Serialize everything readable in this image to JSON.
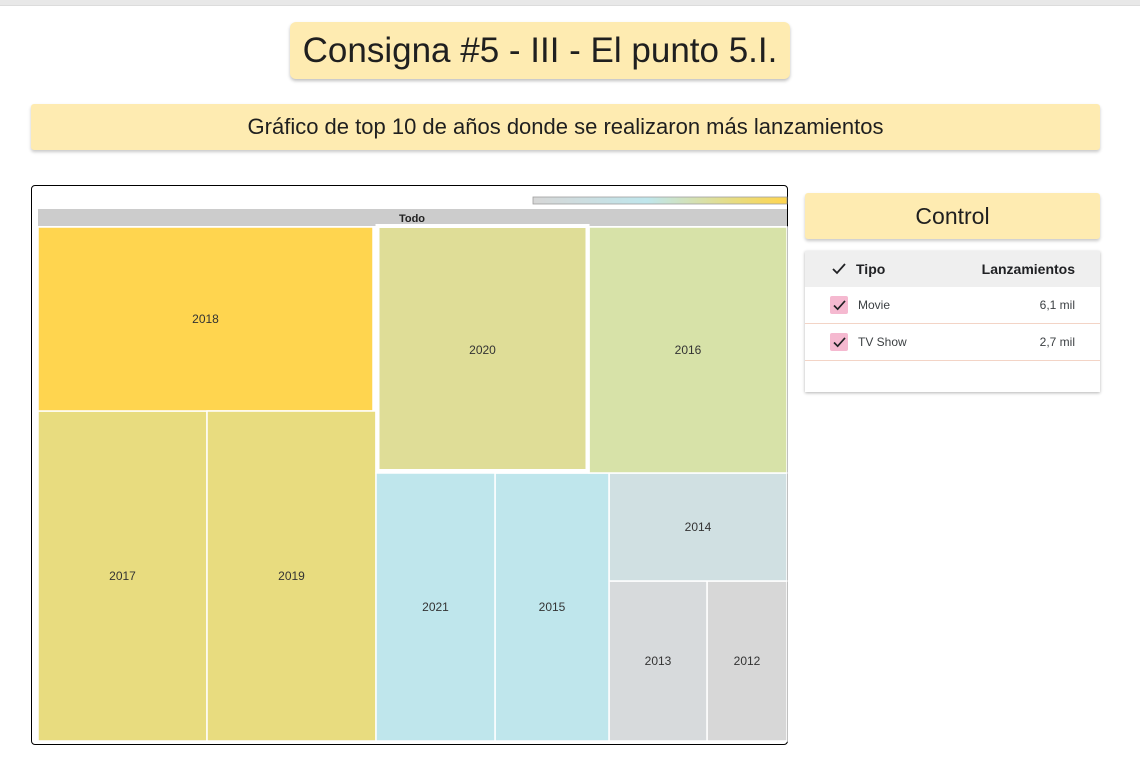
{
  "title": "Consigna #5 - III - El punto 5.I.",
  "subtitle": "Gráfico de top 10 de años donde se realizaron más lanzamientos",
  "chart_data": {
    "type": "treemap",
    "root_label": "Todo",
    "color_scale": [
      "#d7d7d7",
      "#bfe6ec",
      "#e8dc7f",
      "#ffd54f"
    ],
    "highlighted": "2020",
    "items": [
      {
        "label": "2018",
        "value": 1146,
        "color": "#ffd54f"
      },
      {
        "label": "2017",
        "value": 1030,
        "color": "#e8dc7f"
      },
      {
        "label": "2019",
        "value": 1030,
        "color": "#e8dc7f"
      },
      {
        "label": "2020",
        "value": 953,
        "color": "#dfdd97"
      },
      {
        "label": "2016",
        "value": 902,
        "color": "#d7e2a8"
      },
      {
        "label": "2021",
        "value": 592,
        "color": "#bfe6ec"
      },
      {
        "label": "2015",
        "value": 560,
        "color": "#bfe6ec"
      },
      {
        "label": "2014",
        "value": 352,
        "color": "#d0e0e2"
      },
      {
        "label": "2013",
        "value": 288,
        "color": "#d7dadc"
      },
      {
        "label": "2012",
        "value": 237,
        "color": "#d7d7d7"
      }
    ]
  },
  "control": {
    "title": "Control",
    "header": {
      "col1": "Tipo",
      "col2": "Lanzamientos"
    },
    "rows": [
      {
        "label": "Movie",
        "value": "6,1 mil",
        "checked": true
      },
      {
        "label": "TV Show",
        "value": "2,7 mil",
        "checked": true
      }
    ]
  }
}
